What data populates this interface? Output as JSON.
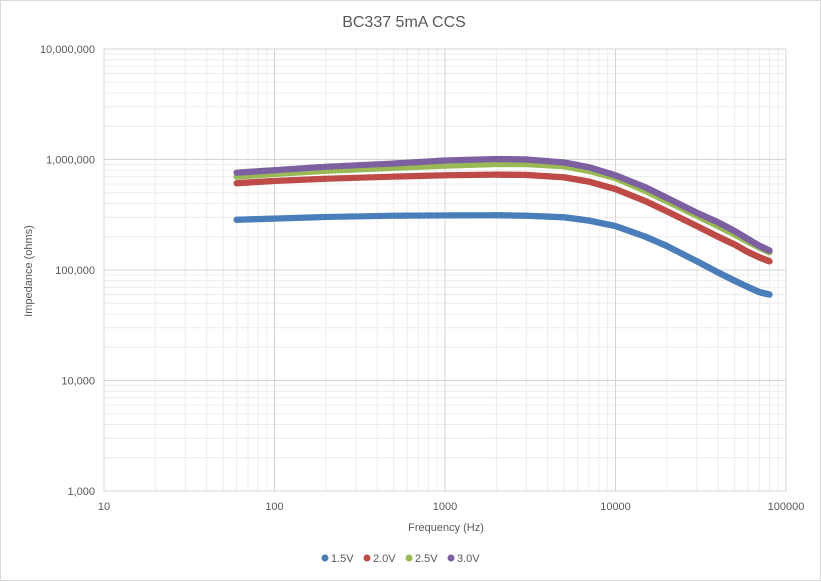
{
  "chart_data": {
    "type": "scatter",
    "title": "BC337 5mA CCS",
    "xlabel": "Frequency (Hz)",
    "ylabel": "Impedance (ohms)",
    "x_scale": "log",
    "y_scale": "log",
    "xlim": [
      10,
      100000
    ],
    "ylim": [
      1000,
      10000000
    ],
    "x_ticks": [
      "10",
      "100",
      "1000",
      "10000",
      "100000"
    ],
    "y_ticks": [
      "1,000",
      "10,000",
      "100,000",
      "1,000,000",
      "10,000,000"
    ],
    "grid": true,
    "legend_position": "bottom",
    "series": [
      {
        "name": "1.5V",
        "color": "#4a7ebb",
        "points": [
          [
            60,
            285000
          ],
          [
            100,
            292000
          ],
          [
            200,
            302000
          ],
          [
            500,
            310000
          ],
          [
            1000,
            312000
          ],
          [
            2000,
            313000
          ],
          [
            3000,
            310000
          ],
          [
            5000,
            300000
          ],
          [
            7000,
            280000
          ],
          [
            10000,
            250000
          ],
          [
            15000,
            200000
          ],
          [
            20000,
            165000
          ],
          [
            30000,
            120000
          ],
          [
            40000,
            95000
          ],
          [
            50000,
            80000
          ],
          [
            60000,
            70000
          ],
          [
            70000,
            63000
          ],
          [
            80000,
            60000
          ]
        ]
      },
      {
        "name": "2.0V",
        "color": "#be4b48",
        "points": [
          [
            60,
            610000
          ],
          [
            100,
            640000
          ],
          [
            200,
            670000
          ],
          [
            500,
            700000
          ],
          [
            1000,
            720000
          ],
          [
            2000,
            730000
          ],
          [
            3000,
            725000
          ],
          [
            5000,
            690000
          ],
          [
            7000,
            630000
          ],
          [
            10000,
            540000
          ],
          [
            15000,
            420000
          ],
          [
            20000,
            340000
          ],
          [
            30000,
            250000
          ],
          [
            40000,
            200000
          ],
          [
            50000,
            170000
          ],
          [
            60000,
            145000
          ],
          [
            70000,
            130000
          ],
          [
            80000,
            120000
          ]
        ]
      },
      {
        "name": "2.5V",
        "color": "#98b954",
        "points": [
          [
            60,
            700000
          ],
          [
            100,
            740000
          ],
          [
            200,
            790000
          ],
          [
            500,
            840000
          ],
          [
            1000,
            880000
          ],
          [
            2000,
            910000
          ],
          [
            3000,
            910000
          ],
          [
            5000,
            870000
          ],
          [
            7000,
            790000
          ],
          [
            10000,
            680000
          ],
          [
            15000,
            520000
          ],
          [
            20000,
            420000
          ],
          [
            30000,
            310000
          ],
          [
            40000,
            250000
          ],
          [
            50000,
            210000
          ],
          [
            60000,
            180000
          ],
          [
            70000,
            160000
          ],
          [
            80000,
            145000
          ]
        ]
      },
      {
        "name": "3.0V",
        "color": "#7d60a0",
        "points": [
          [
            60,
            760000
          ],
          [
            100,
            800000
          ],
          [
            200,
            860000
          ],
          [
            500,
            920000
          ],
          [
            1000,
            980000
          ],
          [
            2000,
            1010000
          ],
          [
            3000,
            1000000
          ],
          [
            5000,
            940000
          ],
          [
            7000,
            850000
          ],
          [
            10000,
            720000
          ],
          [
            15000,
            560000
          ],
          [
            20000,
            450000
          ],
          [
            30000,
            330000
          ],
          [
            40000,
            270000
          ],
          [
            50000,
            225000
          ],
          [
            60000,
            190000
          ],
          [
            70000,
            165000
          ],
          [
            80000,
            150000
          ]
        ]
      }
    ]
  }
}
